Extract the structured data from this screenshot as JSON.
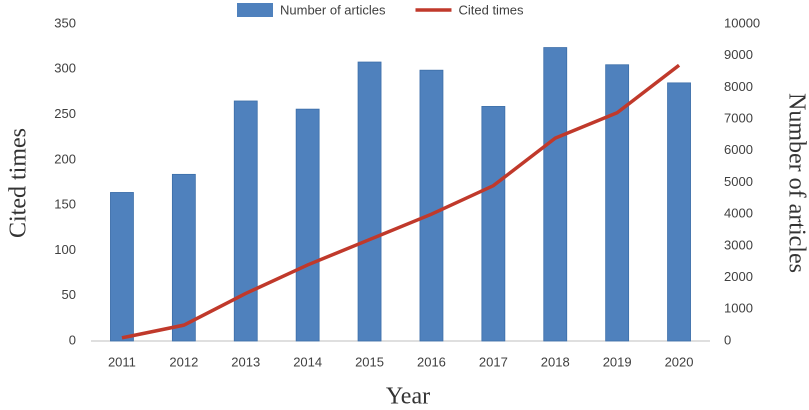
{
  "chart_data": {
    "type": "bar_line",
    "x_label": "Year",
    "y_label": "Cited times",
    "y2_label": "Number of articles",
    "categories": [
      "2011",
      "2012",
      "2013",
      "2014",
      "2015",
      "2016",
      "2017",
      "2018",
      "2019",
      "2020"
    ],
    "series": [
      {
        "name": "Number of articles",
        "type": "bar",
        "color": "#4f81bd",
        "values": [
          164,
          184,
          265,
          256,
          308,
          299,
          259,
          324,
          305,
          285
        ]
      },
      {
        "name": "Cited times",
        "type": "line",
        "axis": "y2",
        "color": "#c0392b",
        "values": [
          100,
          500,
          1500,
          2400,
          3200,
          4000,
          4900,
          6400,
          7200,
          8700
        ]
      }
    ],
    "ylim": [
      0,
      350
    ],
    "yticks": [
      0,
      50,
      100,
      150,
      200,
      250,
      300,
      350
    ],
    "y2lim": [
      0,
      10000
    ],
    "y2ticks": [
      0,
      1000,
      2000,
      3000,
      4000,
      5000,
      6000,
      7000,
      8000,
      9000,
      10000
    ],
    "legend": "top"
  }
}
